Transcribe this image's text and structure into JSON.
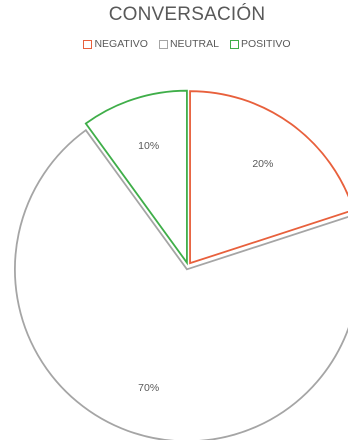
{
  "chart_data": {
    "type": "pie",
    "title": "CONVERSACIÓN",
    "legend_position": "top",
    "categories": [
      "NEGATIVO",
      "NEUTRAL",
      "POSITIVO"
    ],
    "values": [
      20,
      70,
      10
    ],
    "labels": [
      "20%",
      "70%",
      "10%"
    ],
    "colors": [
      "#E8603C",
      "#A5A5A5",
      "#3FAE49"
    ],
    "fill": "none"
  }
}
